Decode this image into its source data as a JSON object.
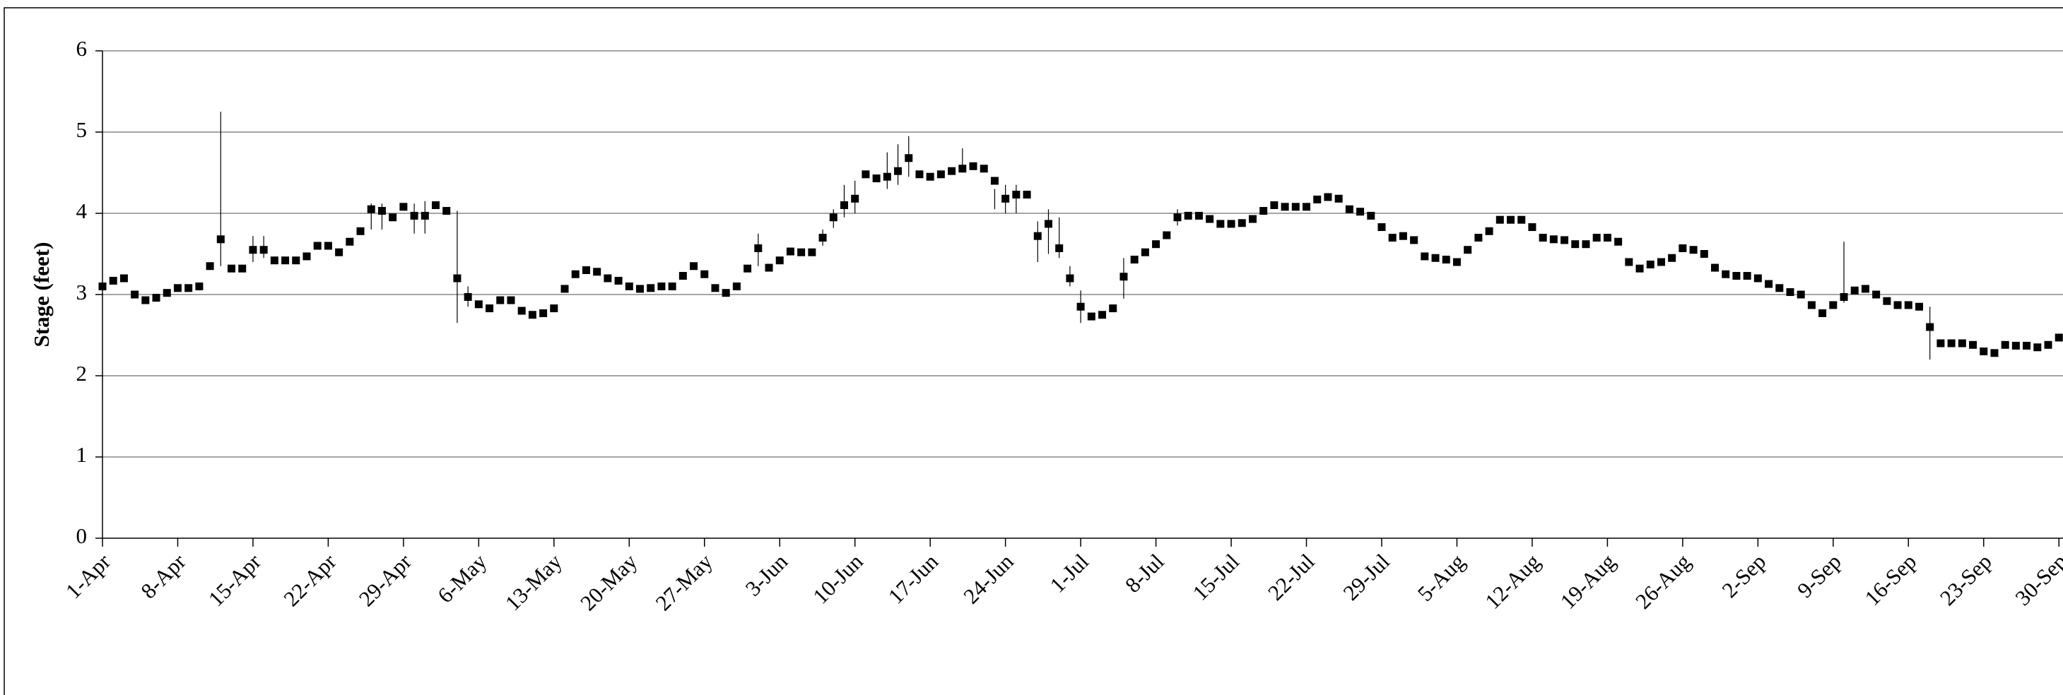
{
  "chart_data": {
    "type": "range-point",
    "y_label": "Stage (feet)",
    "categories": [
      "1-Apr",
      null,
      null,
      null,
      null,
      null,
      null,
      "8-Apr",
      null,
      null,
      null,
      null,
      null,
      null,
      "15-Apr",
      null,
      null,
      null,
      null,
      null,
      null,
      "22-Apr",
      null,
      null,
      null,
      null,
      null,
      null,
      "29-Apr",
      null,
      null,
      null,
      null,
      null,
      null,
      "6-May",
      null,
      null,
      null,
      null,
      null,
      null,
      "13-May",
      null,
      null,
      null,
      null,
      null,
      null,
      "20-May",
      null,
      null,
      null,
      null,
      null,
      null,
      "27-May",
      null,
      null,
      null,
      null,
      null,
      null,
      "3-Jun",
      null,
      null,
      null,
      null,
      null,
      null,
      "10-Jun",
      null,
      null,
      null,
      null,
      null,
      null,
      "17-Jun",
      null,
      null,
      null,
      null,
      null,
      null,
      "24-Jun",
      null,
      null,
      null,
      null,
      null,
      null,
      "1-Jul",
      null,
      null,
      null,
      null,
      null,
      null,
      "8-Jul",
      null,
      null,
      null,
      null,
      null,
      null,
      "15-Jul",
      null,
      null,
      null,
      null,
      null,
      null,
      "22-Jul",
      null,
      null,
      null,
      null,
      null,
      null,
      "29-Jul",
      null,
      null,
      null,
      null,
      null,
      null,
      "5-Aug",
      null,
      null,
      null,
      null,
      null,
      null,
      "12-Aug",
      null,
      null,
      null,
      null,
      null,
      null,
      "19-Aug",
      null,
      null,
      null,
      null,
      null,
      null,
      "26-Aug",
      null,
      null,
      null,
      null,
      null,
      null,
      "2-Sep",
      null,
      null,
      null,
      null,
      null,
      null,
      "9-Sep",
      null,
      null,
      null,
      null,
      null,
      null,
      "16-Sep",
      null,
      null,
      null,
      null,
      null,
      null,
      "23-Sep",
      null,
      null,
      null,
      null,
      null,
      null,
      "30-Sep"
    ],
    "values": [
      3.1,
      3.17,
      3.2,
      3.0,
      2.93,
      2.96,
      3.02,
      3.08,
      3.08,
      3.1,
      3.35,
      3.68,
      3.32,
      3.32,
      3.55,
      3.55,
      3.42,
      3.42,
      3.42,
      3.47,
      3.6,
      3.6,
      3.52,
      3.65,
      3.78,
      4.05,
      4.03,
      3.95,
      4.08,
      3.97,
      3.97,
      4.1,
      4.03,
      3.2,
      2.97,
      2.88,
      2.83,
      2.93,
      2.93,
      2.8,
      2.75,
      2.77,
      2.83,
      3.07,
      3.25,
      3.3,
      3.28,
      3.2,
      3.17,
      3.1,
      3.07,
      3.08,
      3.1,
      3.1,
      3.23,
      3.35,
      3.25,
      3.08,
      3.02,
      3.1,
      3.32,
      3.57,
      3.33,
      3.42,
      3.53,
      3.52,
      3.52,
      3.7,
      3.95,
      4.1,
      4.18,
      4.48,
      4.43,
      4.45,
      4.52,
      4.68,
      4.48,
      4.45,
      4.48,
      4.52,
      4.55,
      4.58,
      4.55,
      4.4,
      4.18,
      4.23,
      4.23,
      3.72,
      3.87,
      3.57,
      3.2,
      2.85,
      2.73,
      2.75,
      2.83,
      3.22,
      3.43,
      3.52,
      3.62,
      3.73,
      3.95,
      3.97,
      3.97,
      3.93,
      3.87,
      3.87,
      3.88,
      3.93,
      4.03,
      4.1,
      4.08,
      4.08,
      4.08,
      4.17,
      4.2,
      4.18,
      4.05,
      4.02,
      3.97,
      3.83,
      3.7,
      3.72,
      3.67,
      3.47,
      3.45,
      3.43,
      3.4,
      3.55,
      3.7,
      3.78,
      3.92,
      3.92,
      3.92,
      3.83,
      3.7,
      3.68,
      3.67,
      3.62,
      3.62,
      3.7,
      3.7,
      3.65,
      3.4,
      3.32,
      3.37,
      3.4,
      3.45,
      3.57,
      3.55,
      3.5,
      3.33,
      3.25,
      3.23,
      3.23,
      3.2,
      3.13,
      3.08,
      3.03,
      3.0,
      2.87,
      2.77,
      2.87,
      2.97,
      3.05,
      3.07,
      3.0,
      2.92,
      2.87,
      2.87,
      2.85,
      2.6,
      2.4,
      2.4,
      2.4,
      2.38,
      2.3,
      2.28,
      2.38,
      2.37,
      2.37,
      2.35,
      2.38,
      2.47
    ],
    "low": [
      null,
      null,
      null,
      null,
      null,
      null,
      null,
      null,
      null,
      null,
      null,
      3.35,
      null,
      null,
      3.4,
      3.45,
      null,
      null,
      null,
      null,
      null,
      null,
      null,
      null,
      null,
      3.8,
      3.8,
      null,
      null,
      3.75,
      3.75,
      null,
      null,
      2.65,
      2.85,
      null,
      null,
      null,
      null,
      null,
      null,
      null,
      null,
      null,
      null,
      null,
      null,
      null,
      null,
      null,
      null,
      null,
      null,
      null,
      null,
      null,
      null,
      null,
      null,
      null,
      null,
      3.35,
      null,
      null,
      null,
      null,
      null,
      3.6,
      3.82,
      3.95,
      4.0,
      null,
      null,
      4.3,
      4.35,
      4.45,
      null,
      null,
      null,
      null,
      4.5,
      null,
      null,
      4.05,
      4.0,
      4.0,
      null,
      3.4,
      3.5,
      3.45,
      3.1,
      2.65,
      null,
      null,
      null,
      2.95,
      null,
      null,
      null,
      null,
      3.85,
      null,
      null,
      null,
      null,
      null,
      null,
      null,
      null,
      null,
      null,
      null,
      null,
      null,
      null,
      null,
      null,
      null,
      null,
      null,
      null,
      null,
      null,
      null,
      null,
      null,
      null,
      null,
      null,
      null,
      null,
      null,
      null,
      null,
      null,
      null,
      null,
      null,
      null,
      null,
      null,
      null,
      null,
      null,
      null,
      null,
      null,
      null,
      null,
      null,
      null,
      null,
      null,
      null,
      null,
      null,
      null,
      null,
      null,
      null,
      null,
      null,
      2.9,
      null,
      null,
      null,
      null,
      null,
      null,
      null,
      2.2,
      null,
      null,
      null,
      null,
      null,
      null,
      null,
      null,
      null,
      null,
      null,
      null
    ],
    "high": [
      null,
      null,
      null,
      null,
      null,
      null,
      null,
      null,
      null,
      null,
      null,
      5.25,
      null,
      null,
      3.72,
      3.72,
      null,
      null,
      null,
      null,
      null,
      null,
      null,
      null,
      null,
      4.12,
      4.12,
      null,
      null,
      4.12,
      4.15,
      null,
      null,
      4.03,
      3.1,
      null,
      null,
      null,
      null,
      null,
      null,
      null,
      null,
      null,
      null,
      null,
      null,
      null,
      null,
      null,
      null,
      null,
      null,
      null,
      null,
      null,
      null,
      null,
      null,
      null,
      null,
      3.75,
      null,
      null,
      null,
      null,
      null,
      3.8,
      4.05,
      4.35,
      4.4,
      null,
      null,
      4.75,
      4.85,
      4.95,
      null,
      null,
      null,
      null,
      4.8,
      null,
      null,
      4.3,
      4.35,
      4.35,
      null,
      3.9,
      4.05,
      3.95,
      3.35,
      3.05,
      null,
      null,
      null,
      3.45,
      null,
      null,
      null,
      null,
      4.05,
      null,
      null,
      null,
      null,
      null,
      null,
      null,
      null,
      null,
      null,
      null,
      null,
      null,
      null,
      null,
      null,
      null,
      null,
      null,
      null,
      null,
      null,
      null,
      null,
      null,
      null,
      null,
      null,
      null,
      null,
      null,
      null,
      null,
      null,
      null,
      null,
      null,
      null,
      null,
      null,
      null,
      null,
      null,
      null,
      null,
      null,
      null,
      null,
      null,
      null,
      null,
      null,
      null,
      null,
      null,
      null,
      null,
      null,
      null,
      null,
      null,
      3.65,
      null,
      null,
      null,
      null,
      null,
      null,
      null,
      2.85,
      null,
      null,
      null,
      null,
      null,
      null,
      null,
      null,
      null,
      null,
      null,
      null
    ],
    "color": "#000000",
    "ylim": [
      0,
      6
    ],
    "yticks": [
      0,
      1,
      2,
      3,
      4,
      5,
      6
    ],
    "grid": true
  }
}
